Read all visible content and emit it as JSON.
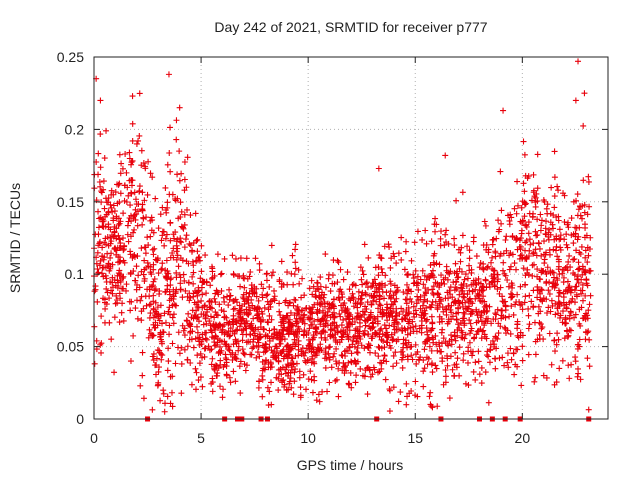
{
  "chart_data": {
    "type": "scatter",
    "title": "Day 242 of 2021, SRMTID for receiver p777",
    "xlabel": "GPS time / hours",
    "ylabel": "SRMTID / TECUs",
    "xlim": [
      0,
      24
    ],
    "ylim": [
      0,
      0.25
    ],
    "xticks": [
      0,
      5,
      10,
      15,
      20
    ],
    "xtick_labels": [
      "0",
      "5",
      "10",
      "15",
      "20"
    ],
    "yticks": [
      0,
      0.05,
      0.1,
      0.15,
      0.2,
      0.25
    ],
    "ytick_labels": [
      "0",
      "0.05",
      "0.1",
      "0.15",
      "0.2",
      "0.25"
    ],
    "grid": true,
    "marker": "plus",
    "point_color": "#e8000b",
    "approximate_point_count": 3000,
    "envelope_hours": [
      0,
      1,
      2,
      3,
      4,
      5,
      6,
      7,
      8,
      9,
      10,
      11,
      12,
      13,
      14,
      15,
      16,
      17,
      18,
      19,
      20,
      21,
      22,
      23
    ],
    "envelope_mean_tecu": [
      0.12,
      0.11,
      0.13,
      0.07,
      0.11,
      0.07,
      0.06,
      0.07,
      0.06,
      0.06,
      0.06,
      0.065,
      0.06,
      0.07,
      0.07,
      0.07,
      0.08,
      0.08,
      0.08,
      0.09,
      0.11,
      0.11,
      0.09,
      0.1
    ],
    "envelope_spread_tecu": [
      0.04,
      0.03,
      0.04,
      0.04,
      0.04,
      0.025,
      0.02,
      0.02,
      0.02,
      0.02,
      0.02,
      0.02,
      0.02,
      0.02,
      0.025,
      0.025,
      0.03,
      0.025,
      0.025,
      0.03,
      0.035,
      0.035,
      0.035,
      0.04
    ],
    "upper_outliers": [
      [
        0.1,
        0.235
      ],
      [
        0.3,
        0.22
      ],
      [
        1.8,
        0.223
      ],
      [
        3.5,
        0.238
      ],
      [
        4.0,
        0.215
      ],
      [
        19.1,
        0.213
      ],
      [
        22.6,
        0.247
      ],
      [
        22.5,
        0.22
      ],
      [
        22.9,
        0.225
      ],
      [
        16.4,
        0.182
      ],
      [
        13.3,
        0.173
      ]
    ],
    "lower_outliers": [
      [
        3.3,
        0.005
      ],
      [
        3.0,
        0.025
      ],
      [
        10.4,
        0.013
      ],
      [
        8.6,
        0.02
      ],
      [
        17.8,
        0.027
      ],
      [
        21.0,
        0.03
      ],
      [
        14.0,
        0.022
      ],
      [
        6.0,
        0.015
      ]
    ],
    "zero_markers_hours": [
      2.5,
      6.1,
      6.7,
      6.9,
      7.8,
      8.1,
      13.2,
      16.2,
      18.0,
      18.6,
      19.2,
      19.9,
      23.1
    ]
  }
}
